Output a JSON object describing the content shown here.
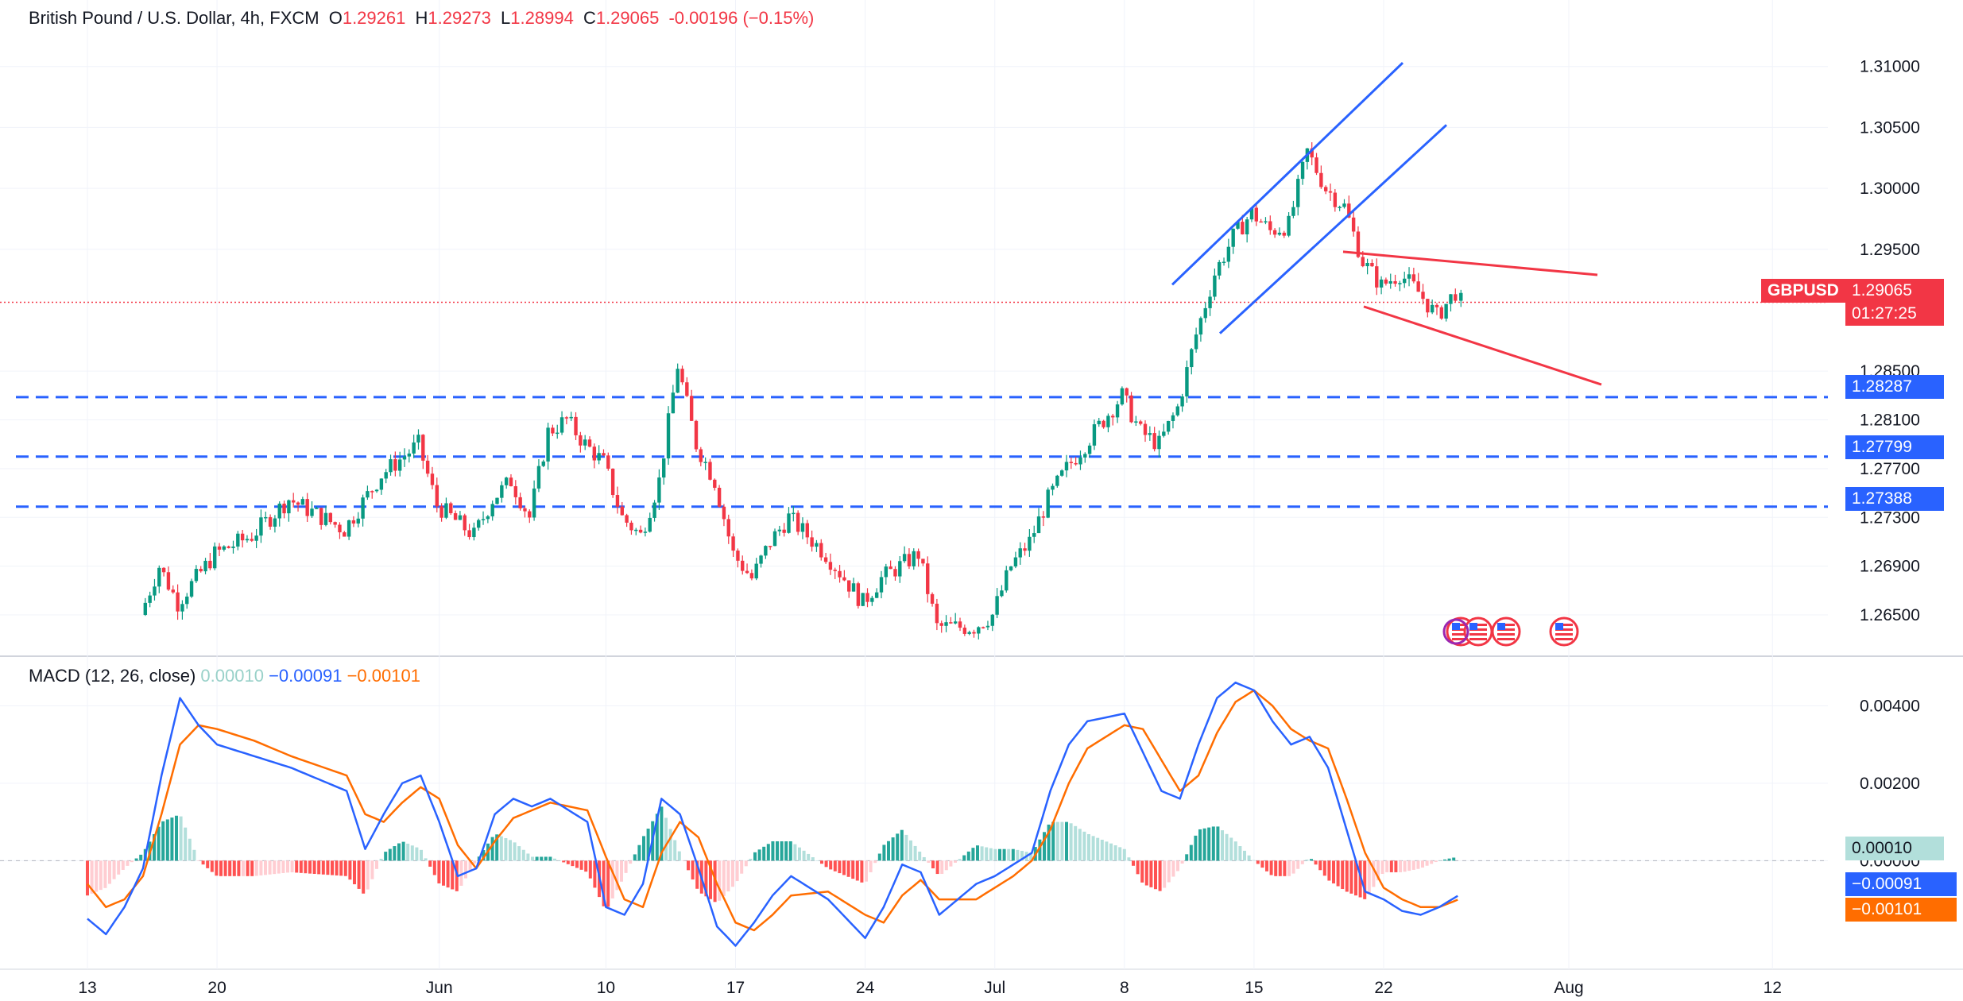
{
  "header": {
    "symbol": "British Pound / U.S. Dollar, 4h, FXCM",
    "open_label": "O",
    "open": "1.29261",
    "high_label": "H",
    "high": "1.29273",
    "low_label": "L",
    "low": "1.28994",
    "close_label": "C",
    "close": "1.29065",
    "change": "-0.00196 (−0.15%)"
  },
  "macd_header": {
    "label": "MACD (12, 26, close)",
    "hist": "0.00010",
    "macd": "−0.00091",
    "signal": "−0.00101"
  },
  "price_tags": {
    "symbol": "GBPUSD",
    "last": "1.29065",
    "countdown": "01:27:25",
    "levels": [
      "1.28287",
      "1.27799",
      "1.27388"
    ]
  },
  "macd_tags": {
    "hist": "0.00010",
    "macd": "−0.00091",
    "signal": "−0.00101"
  },
  "colors": {
    "up": "#089981",
    "down": "#f23645",
    "level": "#2962ff",
    "channel": "#2962ff",
    "wedge": "#f23645",
    "macd": "#2962ff",
    "signal": "#ff6d00"
  },
  "chart_data": [
    {
      "type": "candlestick",
      "title": "British Pound / U.S. Dollar, 4h, FXCM",
      "ylim": [
        1.262,
        1.3135
      ],
      "y_ticks": [
        "1.31000",
        "1.30500",
        "1.30000",
        "1.29500",
        "1.28500",
        "1.28100",
        "1.27700",
        "1.27300",
        "1.26900",
        "1.26500"
      ],
      "x_ticks": [
        "13",
        "20",
        "Jun",
        "10",
        "17",
        "24",
        "Jul",
        "8",
        "15",
        "22",
        "Aug",
        "12"
      ],
      "close_path": [
        [
          "May 16",
          1.265
        ],
        [
          "May 17",
          1.269
        ],
        [
          "May 18",
          1.266
        ],
        [
          "May 20",
          1.27
        ],
        [
          "May 22",
          1.2715
        ],
        [
          "May 24",
          1.2745
        ],
        [
          "May 27",
          1.272
        ],
        [
          "May 29",
          1.2765
        ],
        [
          "May 31",
          1.279
        ],
        [
          "Jun 1",
          1.274
        ],
        [
          "Jun 3",
          1.2715
        ],
        [
          "Jun 4",
          1.2745
        ],
        [
          "Jun 5",
          1.276
        ],
        [
          "Jun 6",
          1.273
        ],
        [
          "Jun 7",
          1.28
        ],
        [
          "Jun 8",
          1.281
        ],
        [
          "Jun 9",
          1.279
        ],
        [
          "Jun 10",
          1.2775
        ],
        [
          "Jun 11",
          1.273
        ],
        [
          "Jun 12",
          1.2715
        ],
        [
          "Jun 13",
          1.276
        ],
        [
          "Jun 14",
          1.2855
        ],
        [
          "Jun 15",
          1.279
        ],
        [
          "Jun 16",
          1.276
        ],
        [
          "Jun 17",
          1.27
        ],
        [
          "Jun 18",
          1.268
        ],
        [
          "Jun 19",
          1.271
        ],
        [
          "Jun 20",
          1.273
        ],
        [
          "Jun 22",
          1.27
        ],
        [
          "Jun 24",
          1.266
        ],
        [
          "Jun 25",
          1.268
        ],
        [
          "Jun 27",
          1.27
        ],
        [
          "Jun 28",
          1.264
        ],
        [
          "Jun 30",
          1.264
        ],
        [
          "Jul 1",
          1.265
        ],
        [
          "Jul 2",
          1.269
        ],
        [
          "Jul 3",
          1.271
        ],
        [
          "Jul 4",
          1.2745
        ],
        [
          "Jul 5",
          1.277
        ],
        [
          "Jul 6",
          1.279
        ],
        [
          "Jul 8",
          1.283
        ],
        [
          "Jul 9",
          1.28
        ],
        [
          "Jul 10",
          1.279
        ],
        [
          "Jul 11",
          1.282
        ],
        [
          "Jul 12",
          1.288
        ],
        [
          "Jul 13",
          1.293
        ],
        [
          "Jul 14",
          1.296
        ],
        [
          "Jul 15",
          1.298
        ],
        [
          "Jul 16",
          1.2965
        ],
        [
          "Jul 17",
          1.297
        ],
        [
          "Jul 18",
          1.303
        ],
        [
          "Jul 19",
          1.3
        ],
        [
          "Jul 20",
          1.2985
        ],
        [
          "Jul 21",
          1.294
        ],
        [
          "Jul 22",
          1.292
        ],
        [
          "Jul 23",
          1.293
        ],
        [
          "Jul 24",
          1.2915
        ],
        [
          "Jul 25",
          1.2895
        ],
        [
          "Jul 26",
          1.2915
        ],
        [
          "Jul 26b",
          1.29065
        ]
      ],
      "horizontal_levels": [
        1.28287,
        1.27799,
        1.27388
      ],
      "last_price": 1.29065
    },
    {
      "type": "macd",
      "title": "MACD (12, 26, close)",
      "ylim": [
        -0.0026,
        0.0052
      ],
      "y_ticks": [
        "0.00400",
        "0.00200",
        "0.00000"
      ],
      "macd_path": [
        [
          "May 13",
          -0.0015
        ],
        [
          "May 14",
          -0.0019
        ],
        [
          "May 15",
          -0.0012
        ],
        [
          "May 16",
          -0.0002
        ],
        [
          "May 17",
          0.0022
        ],
        [
          "May 18",
          0.0042
        ],
        [
          "May 19",
          0.0035
        ],
        [
          "May 20",
          0.003
        ],
        [
          "May 22",
          0.0027
        ],
        [
          "May 24",
          0.0024
        ],
        [
          "May 27",
          0.0018
        ],
        [
          "May 28",
          0.0003
        ],
        [
          "May 29",
          0.0012
        ],
        [
          "May 30",
          0.002
        ],
        [
          "May 31",
          0.0022
        ],
        [
          "Jun 1",
          0.001
        ],
        [
          "Jun 2",
          -0.0004
        ],
        [
          "Jun 3",
          -0.0002
        ],
        [
          "Jun 4",
          0.0012
        ],
        [
          "Jun 5",
          0.0016
        ],
        [
          "Jun 6",
          0.0014
        ],
        [
          "Jun 7",
          0.0016
        ],
        [
          "Jun 9",
          0.001
        ],
        [
          "Jun 10",
          -0.0012
        ],
        [
          "Jun 11",
          -0.0014
        ],
        [
          "Jun 12",
          -0.0006
        ],
        [
          "Jun 13",
          0.0016
        ],
        [
          "Jun 14",
          0.0012
        ],
        [
          "Jun 15",
          -0.0002
        ],
        [
          "Jun 16",
          -0.0017
        ],
        [
          "Jun 17",
          -0.0022
        ],
        [
          "Jun 18",
          -0.0016
        ],
        [
          "Jun 19",
          -0.0009
        ],
        [
          "Jun 20",
          -0.0004
        ],
        [
          "Jun 22",
          -0.001
        ],
        [
          "Jun 24",
          -0.002
        ],
        [
          "Jun 25",
          -0.0012
        ],
        [
          "Jun 26",
          -0.0001
        ],
        [
          "Jun 27",
          -0.0003
        ],
        [
          "Jun 28",
          -0.0014
        ],
        [
          "Jun 30",
          -0.0006
        ],
        [
          "Jul 1",
          -0.0004
        ],
        [
          "Jul 2",
          -0.0001
        ],
        [
          "Jul 3",
          0.0002
        ],
        [
          "Jul 4",
          0.0018
        ],
        [
          "Jul 5",
          0.003
        ],
        [
          "Jul 6",
          0.0036
        ],
        [
          "Jul 8",
          0.0038
        ],
        [
          "Jul 9",
          0.0028
        ],
        [
          "Jul 10",
          0.0018
        ],
        [
          "Jul 11",
          0.0016
        ],
        [
          "Jul 12",
          0.003
        ],
        [
          "Jul 13",
          0.0042
        ],
        [
          "Jul 14",
          0.0046
        ],
        [
          "Jul 15",
          0.0044
        ],
        [
          "Jul 16",
          0.0036
        ],
        [
          "Jul 17",
          0.003
        ],
        [
          "Jul 18",
          0.0032
        ],
        [
          "Jul 19",
          0.0024
        ],
        [
          "Jul 20",
          0.0008
        ],
        [
          "Jul 21",
          -0.0008
        ],
        [
          "Jul 22",
          -0.001
        ],
        [
          "Jul 23",
          -0.0013
        ],
        [
          "Jul 24",
          -0.0014
        ],
        [
          "Jul 25",
          -0.0012
        ],
        [
          "Jul 26",
          -0.00091
        ]
      ],
      "signal_path": [
        [
          "May 13",
          -0.0006
        ],
        [
          "May 14",
          -0.0012
        ],
        [
          "May 15",
          -0.001
        ],
        [
          "May 16",
          -0.0004
        ],
        [
          "May 17",
          0.0012
        ],
        [
          "May 18",
          0.003
        ],
        [
          "May 19",
          0.0035
        ],
        [
          "May 20",
          0.0034
        ],
        [
          "May 22",
          0.0031
        ],
        [
          "May 24",
          0.0027
        ],
        [
          "May 27",
          0.0022
        ],
        [
          "May 28",
          0.0012
        ],
        [
          "May 29",
          0.001
        ],
        [
          "May 30",
          0.0015
        ],
        [
          "May 31",
          0.0019
        ],
        [
          "Jun 1",
          0.0016
        ],
        [
          "Jun 2",
          0.0004
        ],
        [
          "Jun 3",
          -0.0002
        ],
        [
          "Jun 4",
          0.0005
        ],
        [
          "Jun 5",
          0.0011
        ],
        [
          "Jun 6",
          0.0013
        ],
        [
          "Jun 7",
          0.0015
        ],
        [
          "Jun 9",
          0.0013
        ],
        [
          "Jun 10",
          0.0001
        ],
        [
          "Jun 11",
          -0.001
        ],
        [
          "Jun 12",
          -0.0012
        ],
        [
          "Jun 13",
          0.0002
        ],
        [
          "Jun 14",
          0.001
        ],
        [
          "Jun 15",
          0.0006
        ],
        [
          "Jun 16",
          -0.0006
        ],
        [
          "Jun 17",
          -0.0016
        ],
        [
          "Jun 18",
          -0.0018
        ],
        [
          "Jun 19",
          -0.0014
        ],
        [
          "Jun 20",
          -0.0009
        ],
        [
          "Jun 22",
          -0.0008
        ],
        [
          "Jun 24",
          -0.0014
        ],
        [
          "Jun 25",
          -0.0016
        ],
        [
          "Jun 26",
          -0.0009
        ],
        [
          "Jun 27",
          -0.0005
        ],
        [
          "Jun 28",
          -0.001
        ],
        [
          "Jun 30",
          -0.001
        ],
        [
          "Jul 1",
          -0.0007
        ],
        [
          "Jul 2",
          -0.0004
        ],
        [
          "Jul 3",
          0.0
        ],
        [
          "Jul 4",
          0.0008
        ],
        [
          "Jul 5",
          0.002
        ],
        [
          "Jul 6",
          0.0029
        ],
        [
          "Jul 8",
          0.0035
        ],
        [
          "Jul 9",
          0.0034
        ],
        [
          "Jul 10",
          0.0026
        ],
        [
          "Jul 11",
          0.0018
        ],
        [
          "Jul 12",
          0.0022
        ],
        [
          "Jul 13",
          0.0033
        ],
        [
          "Jul 14",
          0.0041
        ],
        [
          "Jul 15",
          0.0044
        ],
        [
          "Jul 16",
          0.004
        ],
        [
          "Jul 17",
          0.0034
        ],
        [
          "Jul 18",
          0.0031
        ],
        [
          "Jul 19",
          0.0029
        ],
        [
          "Jul 20",
          0.0016
        ],
        [
          "Jul 21",
          0.0002
        ],
        [
          "Jul 22",
          -0.0007
        ],
        [
          "Jul 23",
          -0.001
        ],
        [
          "Jul 24",
          -0.0012
        ],
        [
          "Jul 25",
          -0.0012
        ],
        [
          "Jul 26",
          -0.00101
        ]
      ],
      "last_values": {
        "hist": 0.0001,
        "macd": -0.00091,
        "signal": -0.00101
      }
    }
  ]
}
